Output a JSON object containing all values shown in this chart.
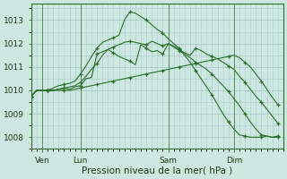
{
  "background_color": "#cce8e0",
  "grid_color": "#aacccc",
  "line_color": "#2d6e2d",
  "marker_color": "#2d6e2d",
  "ylim": [
    1007.5,
    1013.7
  ],
  "yticks": [
    1008,
    1009,
    1010,
    1011,
    1012,
    1013
  ],
  "xlabel": "Pression niveau de la mer( hPa )",
  "xtick_labels": [
    "Ven",
    "Lun",
    "Sam",
    "Dim"
  ],
  "xtick_positions": [
    2,
    9,
    25,
    37
  ],
  "vline_positions": [
    2,
    9,
    25,
    37
  ],
  "xlim": [
    0,
    46
  ],
  "series": [
    {
      "x": [
        0,
        1,
        2,
        3,
        4,
        5,
        6,
        7,
        8,
        9,
        10,
        11,
        12,
        13,
        14,
        15,
        16,
        17,
        18,
        19,
        20,
        21,
        22,
        23,
        24,
        25,
        26,
        27,
        28,
        29,
        30,
        31,
        32,
        33,
        34,
        35,
        36,
        37,
        38,
        39,
        40,
        41,
        42,
        43,
        44,
        45
      ],
      "y": [
        1009.75,
        1010.0,
        1010.0,
        1010.0,
        1010.0,
        1010.05,
        1010.1,
        1010.05,
        1010.15,
        1010.2,
        1010.5,
        1010.55,
        1011.55,
        1011.65,
        1011.75,
        1011.6,
        1011.45,
        1011.35,
        1011.25,
        1011.1,
        1011.95,
        1011.8,
        1011.65,
        1011.7,
        1011.55,
        1012.0,
        1011.9,
        1011.75,
        1011.6,
        1011.5,
        1011.8,
        1011.7,
        1011.55,
        1011.45,
        1011.35,
        1011.2,
        1011.05,
        1010.9,
        1010.6,
        1010.35,
        1010.05,
        1009.75,
        1009.5,
        1009.2,
        1008.9,
        1008.6
      ]
    },
    {
      "x": [
        0,
        1,
        2,
        3,
        4,
        5,
        6,
        7,
        8,
        9,
        10,
        11,
        12,
        13,
        14,
        15,
        16,
        17,
        18,
        19,
        20,
        21,
        22,
        23,
        24,
        25,
        26,
        27,
        28,
        29,
        30,
        31,
        32,
        33,
        34,
        35,
        36,
        37,
        38,
        39,
        40,
        41,
        42,
        43,
        44,
        45
      ],
      "y": [
        1009.75,
        1010.0,
        1010.0,
        1010.0,
        1010.0,
        1010.05,
        1010.1,
        1010.15,
        1010.2,
        1010.35,
        1010.6,
        1010.9,
        1011.15,
        1011.5,
        1011.75,
        1011.85,
        1011.95,
        1012.05,
        1012.1,
        1012.05,
        1012.0,
        1011.95,
        1012.1,
        1012.0,
        1011.9,
        1012.0,
        1011.85,
        1011.7,
        1011.55,
        1011.4,
        1011.2,
        1011.05,
        1010.9,
        1010.7,
        1010.45,
        1010.2,
        1009.95,
        1009.65,
        1009.35,
        1009.0,
        1008.65,
        1008.35,
        1008.1,
        1008.05,
        1008.0,
        1008.0
      ]
    },
    {
      "x": [
        0,
        1,
        2,
        3,
        4,
        5,
        6,
        7,
        8,
        9,
        10,
        11,
        12,
        13,
        14,
        15,
        16,
        17,
        18,
        19,
        20,
        21,
        22,
        23,
        24,
        25,
        26,
        27,
        28,
        29,
        30,
        31,
        32,
        33,
        34,
        35,
        36,
        37,
        38,
        39,
        40,
        41,
        42,
        43,
        44,
        45
      ],
      "y": [
        1009.75,
        1010.0,
        1010.0,
        1010.0,
        1010.1,
        1010.2,
        1010.25,
        1010.3,
        1010.4,
        1010.7,
        1011.05,
        1011.45,
        1011.8,
        1012.05,
        1012.15,
        1012.25,
        1012.35,
        1013.0,
        1013.35,
        1013.3,
        1013.15,
        1013.0,
        1012.8,
        1012.6,
        1012.45,
        1012.2,
        1012.0,
        1011.8,
        1011.5,
        1011.2,
        1010.85,
        1010.5,
        1010.15,
        1009.8,
        1009.4,
        1009.0,
        1008.65,
        1008.35,
        1008.1,
        1008.05,
        1008.0,
        1008.0,
        1008.0,
        1008.05,
        1008.0,
        1008.05
      ]
    },
    {
      "x": [
        0,
        1,
        2,
        3,
        4,
        5,
        6,
        7,
        8,
        9,
        10,
        11,
        12,
        13,
        14,
        15,
        16,
        17,
        18,
        19,
        20,
        21,
        22,
        23,
        24,
        25,
        26,
        27,
        28,
        29,
        30,
        31,
        32,
        33,
        34,
        35,
        36,
        37,
        38,
        39,
        40,
        41,
        42,
        43,
        44,
        45
      ],
      "y": [
        1009.75,
        1010.0,
        1010.0,
        1010.0,
        1010.0,
        1010.0,
        1010.0,
        1010.0,
        1010.05,
        1010.1,
        1010.15,
        1010.2,
        1010.25,
        1010.3,
        1010.35,
        1010.4,
        1010.45,
        1010.5,
        1010.55,
        1010.6,
        1010.65,
        1010.7,
        1010.75,
        1010.8,
        1010.85,
        1010.9,
        1010.95,
        1011.0,
        1011.05,
        1011.1,
        1011.15,
        1011.2,
        1011.25,
        1011.3,
        1011.35,
        1011.4,
        1011.45,
        1011.5,
        1011.4,
        1011.2,
        1011.0,
        1010.7,
        1010.4,
        1010.05,
        1009.7,
        1009.4
      ]
    }
  ],
  "marker_every": 3,
  "font_size": 6.5,
  "xlabel_font_size": 7.5
}
